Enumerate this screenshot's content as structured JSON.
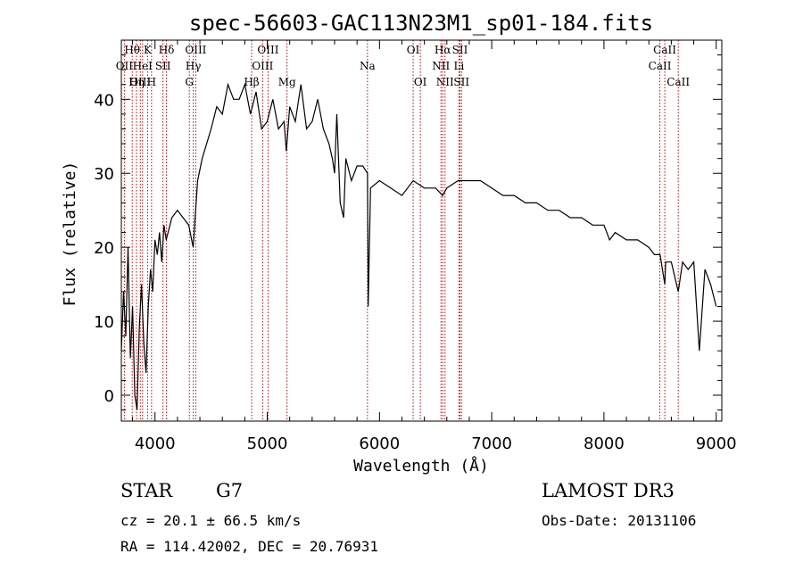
{
  "chart_data": {
    "type": "line",
    "title": "spec-56603-GAC113N23M1_sp01-184.fits",
    "xlabel": "Wavelength (Å)",
    "ylabel": "Flux (relative)",
    "xlim": [
      3700,
      9050
    ],
    "ylim": [
      -3.5,
      48
    ],
    "xticks": [
      4000,
      5000,
      6000,
      7000,
      8000,
      9000
    ],
    "yticks": [
      0,
      10,
      20,
      30,
      40
    ],
    "spectrum": {
      "name": "flux",
      "x": [
        3700,
        3720,
        3740,
        3760,
        3780,
        3800,
        3820,
        3840,
        3860,
        3880,
        3900,
        3920,
        3940,
        3960,
        3980,
        4000,
        4020,
        4040,
        4060,
        4080,
        4100,
        4150,
        4200,
        4250,
        4300,
        4340,
        4380,
        4420,
        4460,
        4500,
        4550,
        4600,
        4650,
        4700,
        4750,
        4800,
        4850,
        4900,
        4950,
        5000,
        5050,
        5100,
        5150,
        5170,
        5200,
        5250,
        5300,
        5350,
        5400,
        5450,
        5500,
        5550,
        5580,
        5600,
        5620,
        5650,
        5680,
        5700,
        5750,
        5800,
        5850,
        5893,
        5900,
        5920,
        6000,
        6100,
        6200,
        6300,
        6400,
        6500,
        6563,
        6600,
        6700,
        6800,
        6870,
        6900,
        7000,
        7100,
        7200,
        7300,
        7400,
        7500,
        7600,
        7700,
        7800,
        7900,
        8000,
        8050,
        8100,
        8200,
        8300,
        8400,
        8450,
        8500,
        8542,
        8550,
        8600,
        8662,
        8700,
        8750,
        8800,
        8850,
        8900,
        8950,
        9000
      ],
      "values": [
        6,
        14,
        8,
        20,
        5,
        12,
        0,
        -2,
        9,
        15,
        7,
        3,
        12,
        17,
        14,
        21,
        19,
        22,
        18,
        23,
        21,
        24,
        25,
        24,
        23,
        20,
        29,
        32,
        34,
        36,
        39,
        38,
        42,
        40,
        40,
        42,
        38,
        41,
        36,
        37,
        40,
        36,
        37,
        33,
        39,
        37,
        42,
        36,
        37,
        40,
        36,
        34,
        32,
        30,
        38,
        26,
        24,
        32,
        29,
        31,
        31,
        30,
        12,
        28,
        29,
        28,
        27,
        29,
        28,
        28,
        27,
        28,
        29,
        29,
        29,
        29,
        28,
        27,
        27,
        26,
        26,
        25,
        25,
        24,
        24,
        23,
        23,
        21,
        22,
        21,
        21,
        20,
        19,
        19,
        15,
        18,
        18,
        14,
        18,
        17,
        18,
        6,
        17,
        15,
        12
      ]
    },
    "line_markers": [
      {
        "label": "Hθ",
        "x": 3797,
        "row": 0
      },
      {
        "label": "OII",
        "x": 3727,
        "row": 1
      },
      {
        "label": "OIII",
        "x": 3869,
        "row": 2
      },
      {
        "label": "K",
        "x": 3934,
        "row": 0
      },
      {
        "label": "HeI",
        "x": 3889,
        "row": 1
      },
      {
        "label": "Hη",
        "x": 3835,
        "row": 2
      },
      {
        "label": "Hδ",
        "x": 4102,
        "row": 0
      },
      {
        "label": "SII",
        "x": 4071,
        "row": 1
      },
      {
        "label": "H",
        "x": 3969,
        "row": 2
      },
      {
        "label": "OIII",
        "x": 4363,
        "row": 0
      },
      {
        "label": "Hγ",
        "x": 4341,
        "row": 1
      },
      {
        "label": "G",
        "x": 4306,
        "row": 2
      },
      {
        "label": "OIII",
        "x": 5007,
        "row": 0
      },
      {
        "label": "OIII",
        "x": 4959,
        "row": 1
      },
      {
        "label": "Hβ",
        "x": 4861,
        "row": 2
      },
      {
        "label": "Mg",
        "x": 5176,
        "row": 2
      },
      {
        "label": "Na",
        "x": 5893,
        "row": 1
      },
      {
        "label": "OI",
        "x": 6300,
        "row": 0
      },
      {
        "label": "OI",
        "x": 6364,
        "row": 2
      },
      {
        "label": "Hα",
        "x": 6563,
        "row": 0
      },
      {
        "label": "NII",
        "x": 6548,
        "row": 1
      },
      {
        "label": "NII",
        "x": 6584,
        "row": 2
      },
      {
        "label": "SII",
        "x": 6717,
        "row": 0
      },
      {
        "label": "Li",
        "x": 6708,
        "row": 1
      },
      {
        "label": "SII",
        "x": 6731,
        "row": 2
      },
      {
        "label": "CaII",
        "x": 8542,
        "row": 0
      },
      {
        "label": "CaII",
        "x": 8498,
        "row": 1
      },
      {
        "label": "CaII",
        "x": 8662,
        "row": 2
      }
    ]
  },
  "info": {
    "object_class": "STAR",
    "subclass": "G7",
    "survey": "LAMOST DR3",
    "velocity": "cz = 20.1 ± 66.5 km/s",
    "obs_date": "Obs-Date: 20131106",
    "coords": "RA = 114.42002, DEC =  20.76931"
  },
  "colors": {
    "spectrum": "#000000",
    "marker": "#cc0000",
    "axis": "#000000"
  }
}
